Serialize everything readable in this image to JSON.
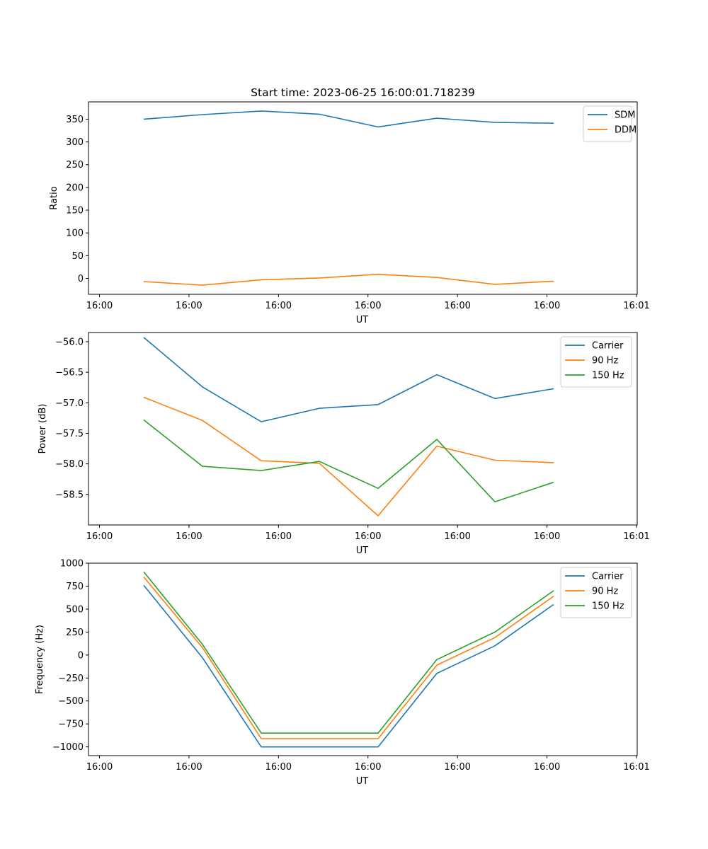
{
  "chart_data": [
    {
      "type": "line",
      "title": "Start time: 2023-06-25 16:00:01.718239",
      "xlabel": "UT",
      "ylabel": "Ratio",
      "x_tick_labels": [
        "16:00",
        "16:00",
        "16:00",
        "16:00",
        "16:00",
        "16:00",
        "16:00",
        "16:01"
      ],
      "y_ticks": [
        0,
        50,
        100,
        150,
        200,
        250,
        300,
        350
      ],
      "ylim": [
        -35,
        388
      ],
      "legend_position": "upper right",
      "series": [
        {
          "name": "SDM",
          "color": "#1f77b4",
          "values": [
            350,
            360,
            368,
            361,
            333,
            352,
            343,
            341
          ]
        },
        {
          "name": "DDM",
          "color": "#ff7f0e",
          "values": [
            -7,
            -15,
            -3,
            1,
            9,
            2,
            -13,
            -6
          ]
        }
      ]
    },
    {
      "type": "line",
      "title": "",
      "xlabel": "UT",
      "ylabel": "Power (dB)",
      "x_tick_labels": [
        "16:00",
        "16:00",
        "16:00",
        "16:00",
        "16:00",
        "16:00",
        "16:00",
        "16:01"
      ],
      "y_ticks": [
        -58.5,
        -58.0,
        -57.5,
        -57.0,
        -56.5,
        -56.0
      ],
      "y_tick_labels": [
        "−58.5",
        "−58.0",
        "−57.5",
        "−57.0",
        "−56.5",
        "−56.0"
      ],
      "ylim": [
        -59.0,
        -55.85
      ],
      "legend_position": "upper right",
      "series": [
        {
          "name": "Carrier",
          "color": "#1f77b4",
          "values": [
            -55.93,
            -56.74,
            -57.31,
            -57.09,
            -57.03,
            -56.54,
            -56.93,
            -56.77
          ]
        },
        {
          "name": "90 Hz",
          "color": "#ff7f0e",
          "values": [
            -56.91,
            -57.29,
            -57.95,
            -57.99,
            -58.85,
            -57.71,
            -57.94,
            -57.98
          ]
        },
        {
          "name": "150 Hz",
          "color": "#2ca02c",
          "values": [
            -57.28,
            -58.04,
            -58.11,
            -57.96,
            -58.4,
            -57.6,
            -58.62,
            -58.3
          ]
        }
      ]
    },
    {
      "type": "line",
      "title": "",
      "xlabel": "UT",
      "ylabel": "Frequency (Hz)",
      "x_tick_labels": [
        "16:00",
        "16:00",
        "16:00",
        "16:00",
        "16:00",
        "16:00",
        "16:00",
        "16:01"
      ],
      "y_ticks": [
        -1000,
        -750,
        -500,
        -250,
        0,
        250,
        500,
        750,
        1000
      ],
      "y_tick_labels": [
        "−1000",
        "−750",
        "−500",
        "−250",
        "0",
        "250",
        "500",
        "750",
        "1000"
      ],
      "ylim": [
        -1095,
        1000
      ],
      "legend_position": "upper right",
      "series": [
        {
          "name": "Carrier",
          "color": "#1f77b4",
          "values": [
            760,
            -30,
            -1000,
            -1000,
            -1000,
            -200,
            100,
            550
          ]
        },
        {
          "name": "90 Hz",
          "color": "#ff7f0e",
          "values": [
            850,
            80,
            -910,
            -910,
            -910,
            -110,
            190,
            640
          ]
        },
        {
          "name": "150 Hz",
          "color": "#2ca02c",
          "values": [
            905,
            115,
            -850,
            -850,
            -850,
            -50,
            250,
            700
          ]
        }
      ]
    }
  ]
}
